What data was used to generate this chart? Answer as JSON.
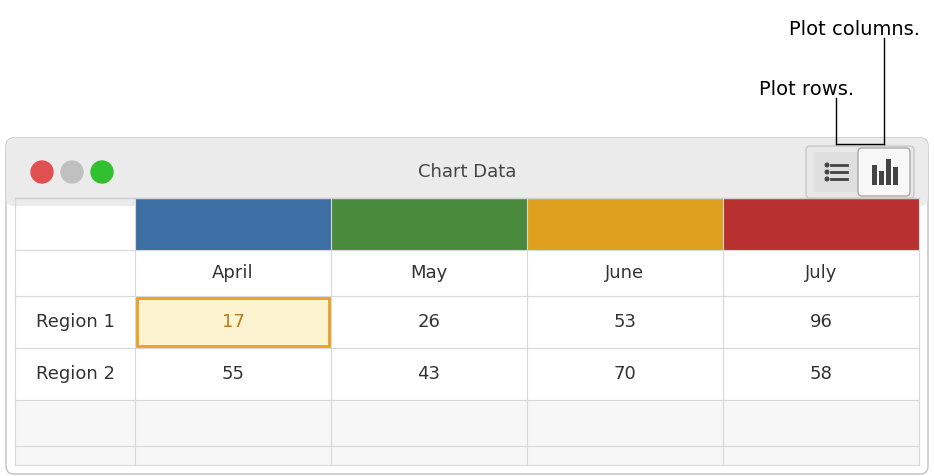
{
  "title": "Chart Data",
  "annotation_plot_columns": "Plot columns.",
  "annotation_plot_rows": "Plot rows.",
  "columns": [
    "April",
    "May",
    "June",
    "July"
  ],
  "rows": [
    "Region 1",
    "Region 2"
  ],
  "values": [
    [
      17,
      26,
      53,
      96
    ],
    [
      55,
      43,
      70,
      58
    ]
  ],
  "col_colors": [
    "#3d6fa5",
    "#4a8a3c",
    "#dfa020",
    "#b83030"
  ],
  "fig_bg": "#ffffff",
  "table_bg": "#ffffff",
  "title_bar_bg": "#ebebeb",
  "grid_color": "#d8d8d8",
  "cell_text_color": "#333333",
  "header_text_color": "#333333",
  "selected_cell_bg": "#fdf3d0",
  "selected_cell_border": "#e8a020",
  "selected_row": 0,
  "selected_col": 0,
  "annotation_font_size": 14,
  "title_font_size": 13,
  "cell_font_size": 13,
  "header_font_size": 13,
  "traffic_red": "#e05050",
  "traffic_gray": "#c0c0c0",
  "traffic_green": "#30c030",
  "window_edge_color": "#c0c0c0",
  "separator_color": "#d0d0d0"
}
